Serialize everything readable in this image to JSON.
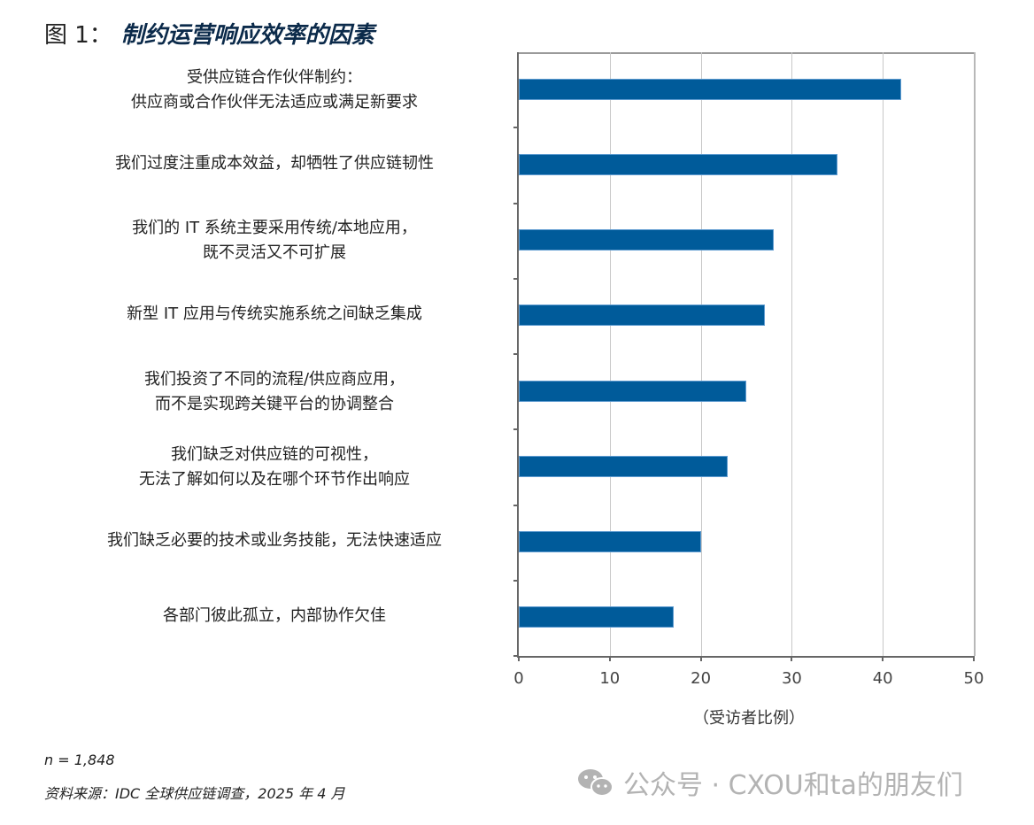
{
  "figure": {
    "prefix": "图 1：",
    "title": "制约运营响应效率的因素"
  },
  "chart_data": {
    "type": "bar",
    "orientation": "horizontal",
    "title": "制约运营响应效率的因素",
    "categories": [
      "受供应链合作伙伴制约：供应商或合作伙伴无法适应或满足新要求",
      "我们过度注重成本效益，却牺牲了供应链韧性",
      "我们的 IT 系统主要采用传统/本地应用，既不灵活又不可扩展",
      "新型 IT 应用与传统实施系统之间缺乏集成",
      "我们投资了不同的流程/供应商应用，而不是实现跨关键平台的协调整合",
      "我们缺乏对供应链的可视性，无法了解如何以及在哪个环节作出响应",
      "我们缺乏必要的技术或业务技能，无法快速适应",
      "各部门彼此孤立，内部协作欠佳"
    ],
    "values": [
      42,
      35,
      28,
      27,
      25,
      23,
      20,
      17
    ],
    "xlabel": "（受访者比例）",
    "ylabel": "",
    "xlim": [
      0,
      50
    ],
    "xticks": [
      "0",
      "10",
      "20",
      "30",
      "40",
      "50"
    ],
    "grid": true,
    "bar_color": "#005b9a"
  },
  "labels": [
    {
      "line1": "受供应链合作伙伴制约：",
      "line2": "供应商或合作伙伴无法适应或满足新要求"
    },
    {
      "line1": "我们过度注重成本效益，却牺牲了供应链韧性",
      "line2": ""
    },
    {
      "line1": "我们的 IT 系统主要采用传统/本地应用，",
      "line2": "既不灵活又不可扩展"
    },
    {
      "line1": "新型 IT 应用与传统实施系统之间缺乏集成",
      "line2": ""
    },
    {
      "line1": "我们投资了不同的流程/供应商应用，",
      "line2": "而不是实现跨关键平台的协调整合"
    },
    {
      "line1": "我们缺乏对供应链的可视性，",
      "line2": "无法了解如何以及在哪个环节作出响应"
    },
    {
      "line1": "我们缺乏必要的技术或业务技能，无法快速适应",
      "line2": ""
    },
    {
      "line1": "各部门彼此孤立，内部协作欠佳",
      "line2": ""
    }
  ],
  "axis": {
    "title": "（受访者比例）",
    "ticks": [
      "0",
      "10",
      "20",
      "30",
      "40",
      "50"
    ]
  },
  "footer": {
    "n": "n = 1,848",
    "source": "资料来源：IDC 全球供应链调查，2025 年 4 月"
  },
  "watermark": {
    "icon": "wechat-icon",
    "text": "公众号 · CXOU和ta的朋友们"
  }
}
